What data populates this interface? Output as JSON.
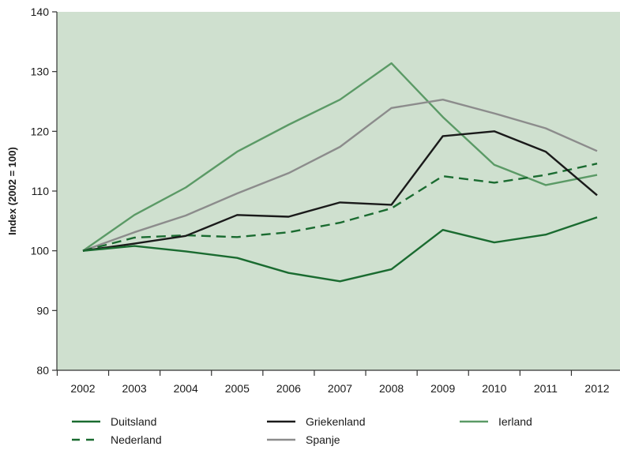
{
  "chart_data": {
    "type": "line",
    "title": "",
    "xlabel": "",
    "ylabel": "Index (2002 = 100)",
    "x": [
      "2002",
      "2003",
      "2004",
      "2005",
      "2006",
      "2007",
      "2008",
      "2009",
      "2010",
      "2011",
      "2012"
    ],
    "ylim": [
      80,
      140
    ],
    "yticks": [
      80,
      90,
      100,
      110,
      120,
      130,
      140
    ],
    "grid": false,
    "plot_background": "#cfe0cf",
    "legend_position": "bottom",
    "series": [
      {
        "name": "Duitsland",
        "color": "#1a6b30",
        "dash": "solid",
        "values": [
          100,
          100.8,
          99.9,
          98.8,
          96.3,
          94.9,
          96.9,
          103.5,
          101.4,
          102.7,
          105.6
        ]
      },
      {
        "name": "Griekenland",
        "color": "#1a1a1a",
        "dash": "solid",
        "values": [
          100,
          101.2,
          102.5,
          106.0,
          105.7,
          108.1,
          107.7,
          119.2,
          120.0,
          116.6,
          109.3
        ]
      },
      {
        "name": "Ierland",
        "color": "#5b9a66",
        "dash": "solid",
        "values": [
          100,
          106.0,
          110.6,
          116.6,
          121.1,
          125.3,
          131.4,
          122.4,
          114.4,
          111.0,
          112.7
        ]
      },
      {
        "name": "Nederland",
        "color": "#1a6b30",
        "dash": "dashed",
        "values": [
          100,
          102.2,
          102.6,
          102.3,
          103.1,
          104.7,
          107.1,
          112.5,
          111.4,
          112.7,
          114.6
        ]
      },
      {
        "name": "Spanje",
        "color": "#8c8c8c",
        "dash": "solid",
        "values": [
          100,
          103.1,
          105.9,
          109.6,
          113.0,
          117.4,
          123.9,
          125.3,
          123.0,
          120.5,
          116.7
        ]
      }
    ]
  }
}
